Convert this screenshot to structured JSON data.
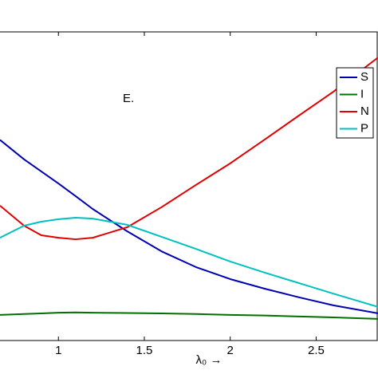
{
  "chart_data": {
    "type": "line",
    "annotation": "E.",
    "xlabel": "λ₀ →",
    "x": [
      0.66,
      0.8,
      0.9,
      1.0,
      1.1,
      1.2,
      1.4,
      1.6,
      1.8,
      2.0,
      2.2,
      2.4,
      2.6,
      2.86
    ],
    "series": [
      {
        "name": "S",
        "color": "#0000b0",
        "values": [
          0.65,
          0.587,
          0.548,
          0.509,
          0.468,
          0.426,
          0.354,
          0.289,
          0.238,
          0.199,
          0.168,
          0.14,
          0.114,
          0.088
        ]
      },
      {
        "name": "I",
        "color": "#007000",
        "values": [
          0.083,
          0.086,
          0.088,
          0.09,
          0.091,
          0.09,
          0.089,
          0.088,
          0.086,
          0.083,
          0.081,
          0.078,
          0.075,
          0.07
        ]
      },
      {
        "name": "N",
        "color": "#e00000",
        "values": [
          0.437,
          0.372,
          0.341,
          0.333,
          0.328,
          0.333,
          0.367,
          0.432,
          0.504,
          0.574,
          0.651,
          0.729,
          0.806,
          0.917
        ]
      },
      {
        "name": "P",
        "color": "#00c0c0",
        "values": [
          0.333,
          0.372,
          0.385,
          0.393,
          0.398,
          0.395,
          0.375,
          0.336,
          0.297,
          0.256,
          0.22,
          0.186,
          0.152,
          0.109
        ]
      }
    ],
    "xlim": [
      0.66,
      2.86
    ],
    "ylim": [
      0,
      1
    ],
    "xticks": [
      1,
      1.5,
      2,
      2.5
    ],
    "legend": "upper right"
  }
}
